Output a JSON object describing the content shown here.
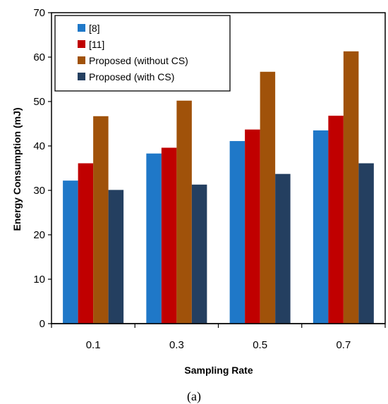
{
  "chart_data": {
    "type": "bar",
    "categories": [
      "0.1",
      "0.3",
      "0.5",
      "0.7"
    ],
    "series": [
      {
        "name": "[8]",
        "color": "#1f78c8",
        "values": [
          32.2,
          38.3,
          41.1,
          43.5
        ]
      },
      {
        "name": "[11]",
        "color": "#c00000",
        "values": [
          36.1,
          39.6,
          43.7,
          46.8
        ]
      },
      {
        "name": "Proposed (without CS)",
        "color": "#a0520a",
        "values": [
          46.7,
          50.2,
          56.7,
          61.3
        ]
      },
      {
        "name": "Proposed (with CS)",
        "color": "#243f60",
        "values": [
          30.1,
          31.3,
          33.7,
          36.1
        ]
      }
    ],
    "xlabel": "Sampling Rate",
    "ylabel": "Energy Consumption (mJ)",
    "ylim": [
      0,
      70
    ],
    "yticks": [
      0,
      10,
      20,
      30,
      40,
      50,
      60,
      70
    ],
    "grid": false,
    "legend_position": "top-left"
  },
  "caption": "(a)"
}
